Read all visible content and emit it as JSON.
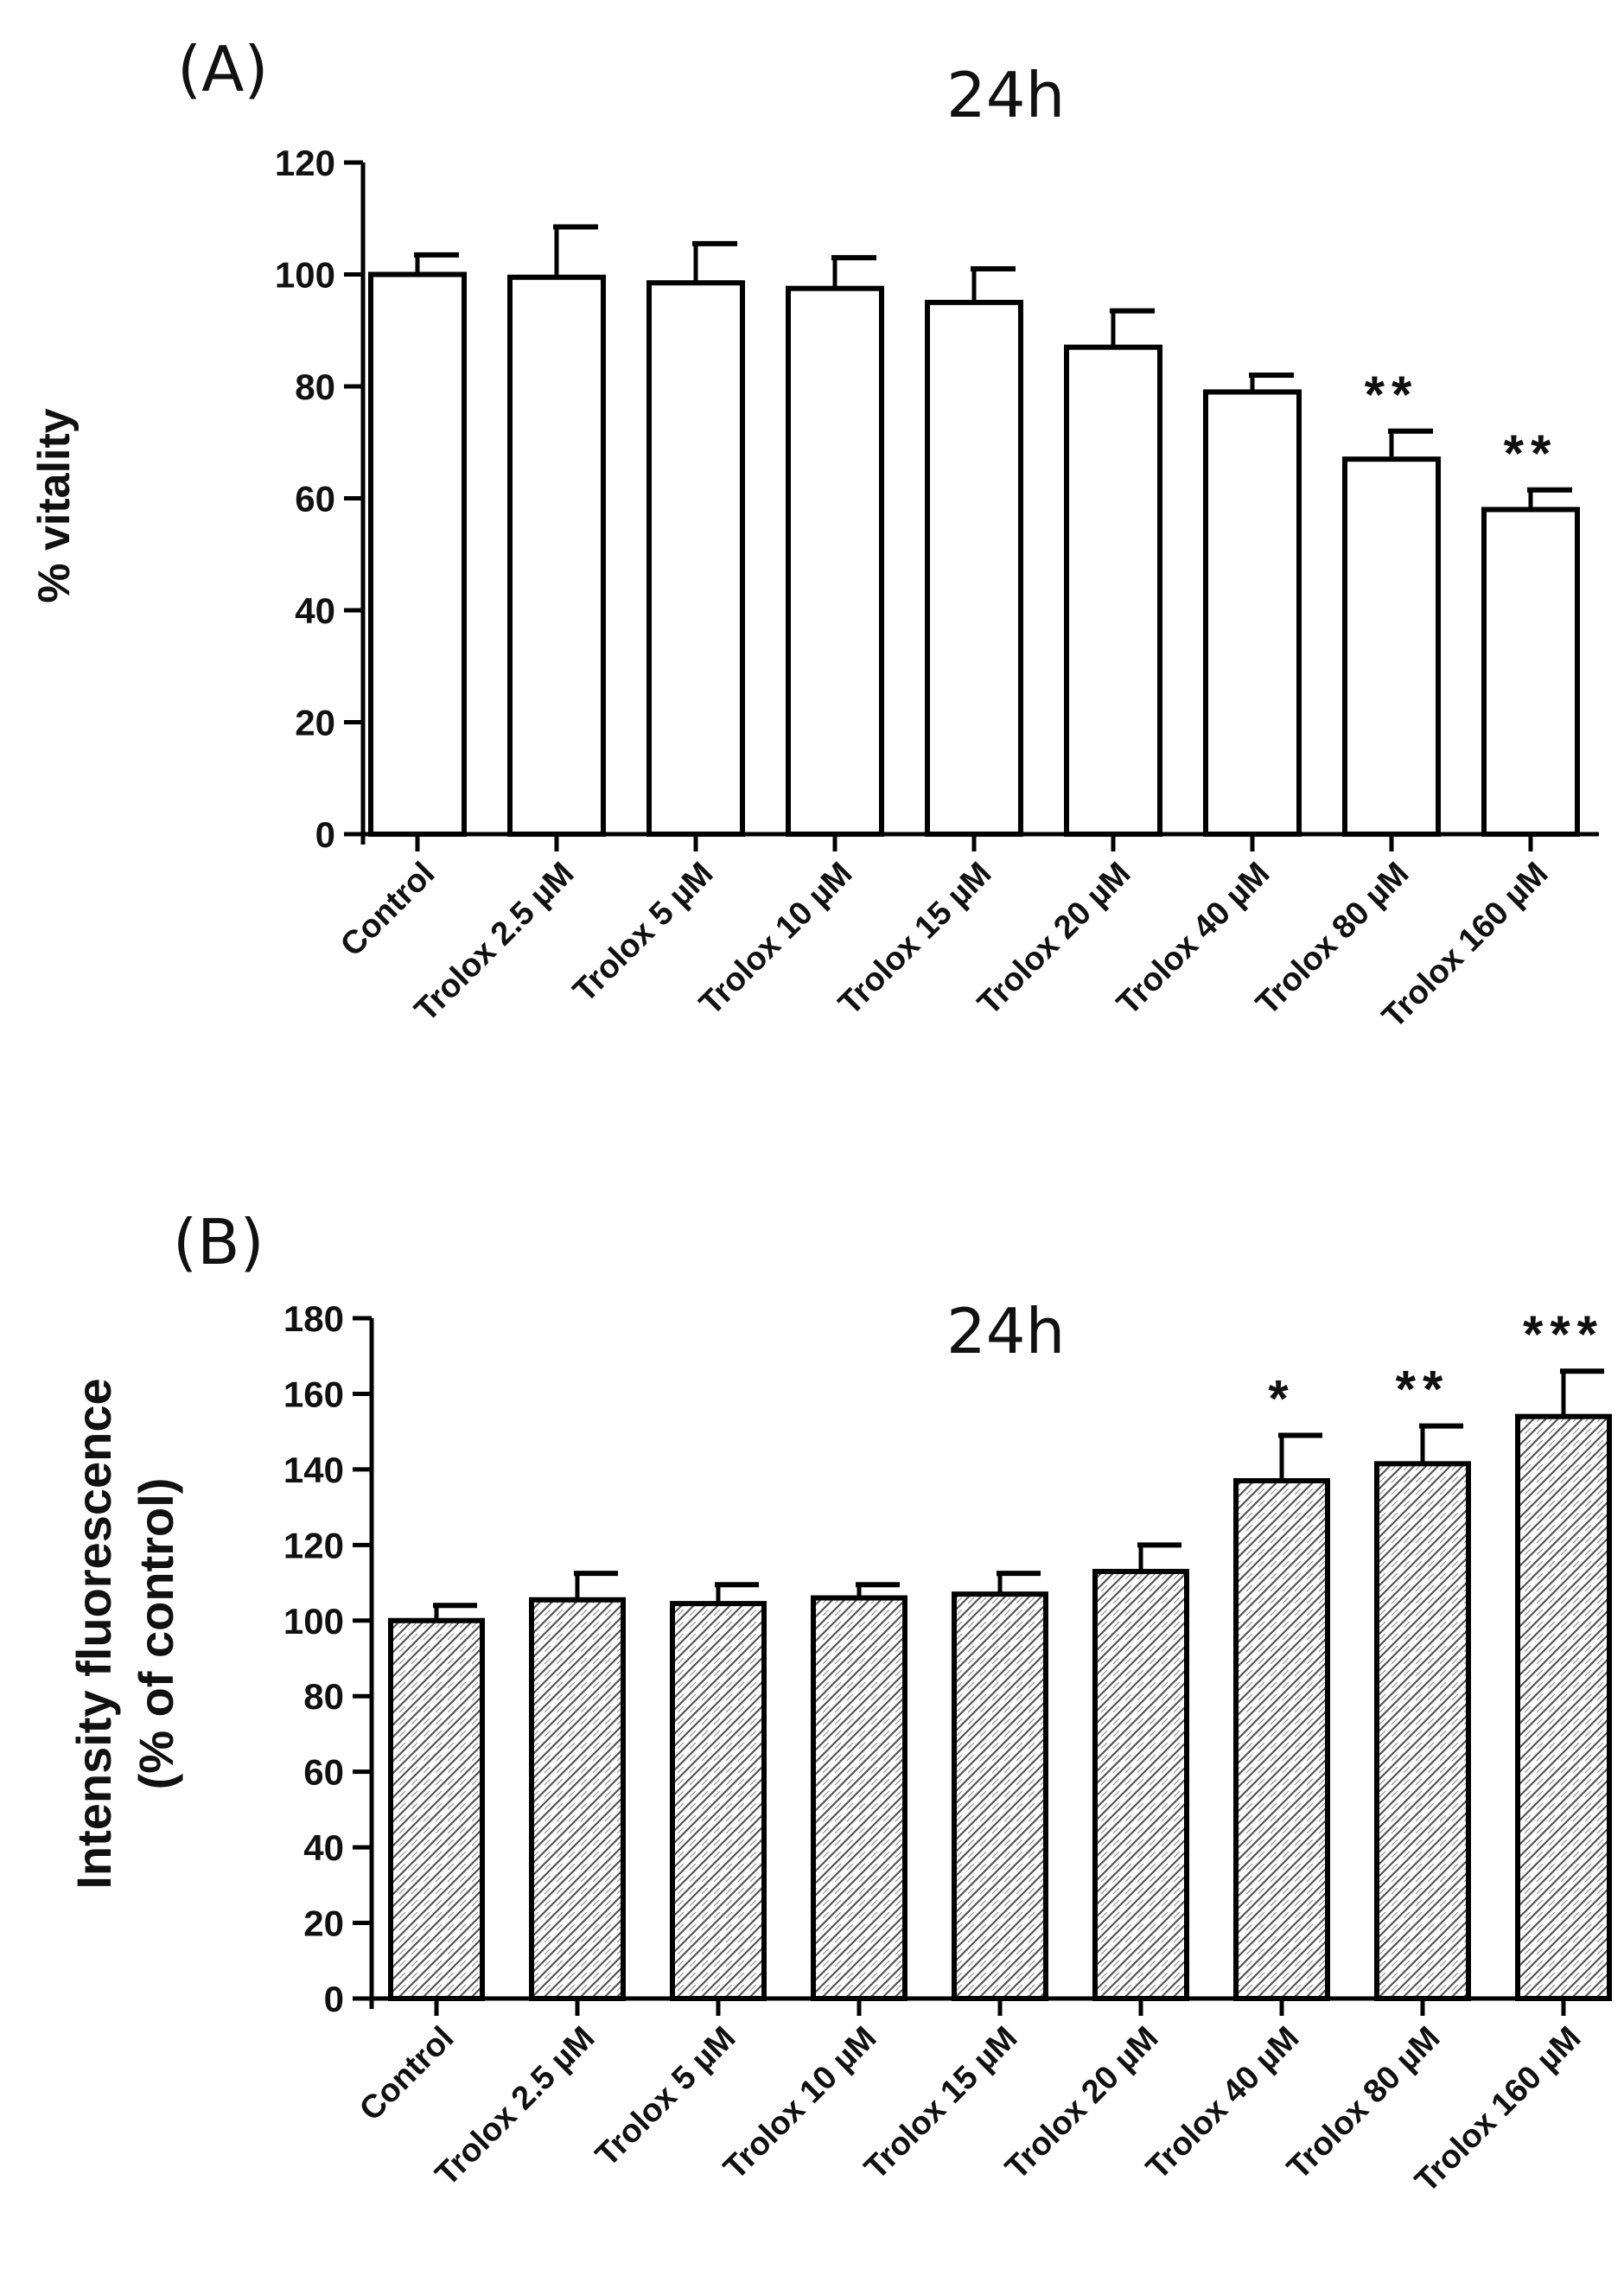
{
  "chart_data": [
    {
      "type": "bar",
      "panel_label": "(A)",
      "title": "24h",
      "xlabel": "",
      "ylabel": "% vitality",
      "ylim": [
        0,
        120
      ],
      "yticks": [
        0,
        20,
        40,
        60,
        80,
        100,
        120
      ],
      "categories": [
        "Control",
        "Trolox 2.5 µM",
        "Trolox 5 µM",
        "Trolox 10 µM",
        "Trolox 15 µM",
        "Trolox 20 µM",
        "Trolox 40 µM",
        "Trolox 80 µM",
        "Trolox 160 µM"
      ],
      "values": [
        100,
        99.5,
        98.5,
        97.5,
        95,
        87,
        79,
        67,
        58
      ],
      "errors": [
        3.5,
        9,
        7,
        5.5,
        6,
        6.5,
        3,
        5,
        3.5
      ],
      "significance": [
        "",
        "",
        "",
        "",
        "",
        "",
        "",
        "**",
        "**"
      ],
      "fill": "plain",
      "colors": {
        "bar_fill": "#ffffff",
        "bar_stroke": "#000000"
      }
    },
    {
      "type": "bar",
      "panel_label": "(B)",
      "title": "24h",
      "xlabel": "",
      "ylabel": [
        "Intensity fluorescence",
        "(% of control)"
      ],
      "ylim": [
        0,
        180
      ],
      "yticks": [
        0,
        20,
        40,
        60,
        80,
        100,
        120,
        140,
        160,
        180
      ],
      "categories": [
        "Control",
        "Trolox 2.5 µM",
        "Trolox 5 µM",
        "Trolox 10 µM",
        "Trolox 15 µM",
        "Trolox 20 µM",
        "Trolox 40 µM",
        "Trolox 80 µM",
        "Trolox 160 µM"
      ],
      "values": [
        100,
        105.5,
        104.5,
        106,
        107,
        113,
        137,
        141.5,
        154
      ],
      "errors": [
        4,
        7,
        5,
        3.5,
        5.5,
        7,
        12,
        10,
        12
      ],
      "significance": [
        "",
        "",
        "",
        "",
        "",
        "",
        "*",
        "**",
        "***"
      ],
      "fill": "hatched",
      "colors": {
        "bar_fill": "#ffffff",
        "bar_stroke": "#000000",
        "hatch": "#555555"
      }
    }
  ]
}
